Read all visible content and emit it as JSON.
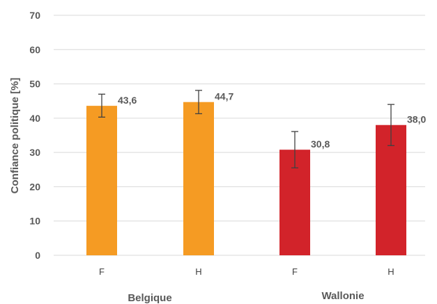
{
  "chart_data": {
    "type": "bar",
    "title": "",
    "ylabel": "Confiance politique [%]",
    "ylim": [
      0,
      70
    ],
    "yticks": [
      0,
      10,
      20,
      30,
      40,
      50,
      60,
      70
    ],
    "grid": true,
    "groups": [
      {
        "name": "Belgique",
        "color": "#F59B23"
      },
      {
        "name": "Wallonie",
        "color": "#D2232A"
      }
    ],
    "bars": [
      {
        "group": "Belgique",
        "category": "F",
        "value": 43.6,
        "label": "43,6",
        "err_low": 40.3,
        "err_high": 47.0,
        "color": "#F59B23"
      },
      {
        "group": "Belgique",
        "category": "H",
        "value": 44.7,
        "label": "44,7",
        "err_low": 41.3,
        "err_high": 48.1,
        "color": "#F59B23"
      },
      {
        "group": "Wallonie",
        "category": "F",
        "value": 30.8,
        "label": "30,8",
        "err_low": 25.5,
        "err_high": 36.1,
        "color": "#D2232A"
      },
      {
        "group": "Wallonie",
        "category": "H",
        "value": 38.0,
        "label": "38,0",
        "err_low": 32.0,
        "err_high": 44.0,
        "color": "#D2232A"
      }
    ]
  }
}
